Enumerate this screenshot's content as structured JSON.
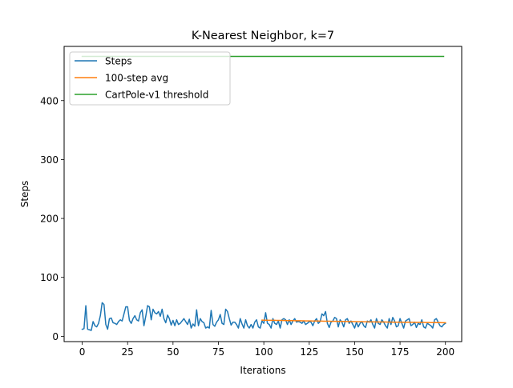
{
  "chart_data": {
    "type": "line",
    "title": "K-Nearest Neighbor, k=7",
    "xlabel": "Iterations",
    "ylabel": "Steps",
    "xlim": [
      -9.95,
      208.95
    ],
    "ylim": [
      -9.0,
      492.0
    ],
    "xticks": [
      0,
      25,
      50,
      75,
      100,
      125,
      150,
      175,
      200
    ],
    "yticks": [
      0,
      100,
      200,
      300,
      400
    ],
    "grid": false,
    "legend_position": "top-left",
    "series": [
      {
        "name": "Steps",
        "color": "#1f77b4",
        "x_start": 0,
        "values": [
          12,
          13,
          52,
          12,
          11,
          10,
          25,
          18,
          16,
          22,
          35,
          57,
          54,
          20,
          12,
          30,
          31,
          23,
          22,
          20,
          25,
          28,
          26,
          38,
          50,
          50,
          27,
          22,
          30,
          35,
          28,
          26,
          40,
          45,
          18,
          34,
          52,
          50,
          28,
          46,
          40,
          38,
          42,
          34,
          46,
          30,
          23,
          36,
          30,
          19,
          27,
          18,
          28,
          20,
          22,
          26,
          30,
          25,
          20,
          29,
          14,
          21,
          17,
          45,
          18,
          30,
          25,
          23,
          14,
          16,
          14,
          44,
          20,
          17,
          24,
          28,
          37,
          22,
          20,
          46,
          42,
          30,
          19,
          24,
          24,
          20,
          14,
          30,
          21,
          14,
          28,
          18,
          14,
          20,
          14,
          24,
          28,
          16,
          14,
          26,
          22,
          40,
          22,
          20,
          14,
          30,
          22,
          20,
          26,
          14,
          28,
          30,
          28,
          20,
          28,
          20,
          26,
          30,
          24,
          25,
          24,
          22,
          26,
          20,
          22,
          25,
          24,
          18,
          26,
          30,
          22,
          25,
          38,
          35,
          42,
          22,
          15,
          24,
          26,
          32,
          30,
          16,
          28,
          24,
          16,
          28,
          30,
          22,
          26,
          20,
          14,
          24,
          16,
          22,
          25,
          18,
          15,
          26,
          24,
          28,
          20,
          14,
          30,
          22,
          20,
          28,
          24,
          18,
          14,
          30,
          20,
          32,
          26,
          16,
          18,
          30,
          22,
          14,
          26,
          28,
          30,
          18,
          20,
          24,
          15,
          22,
          20,
          28,
          16,
          14,
          22,
          20,
          18,
          14,
          28,
          30,
          24,
          18,
          16,
          20,
          22
        ]
      },
      {
        "name": "100-step avg",
        "color": "#ff7f0e",
        "x_start": 99,
        "values": [
          27.5,
          27.4,
          27.3,
          27.3,
          27.2,
          27.2,
          27.1,
          27.1,
          27.0,
          27.0,
          26.9,
          26.9,
          26.8,
          26.8,
          26.7,
          26.7,
          26.6,
          26.6,
          26.5,
          26.5,
          26.4,
          26.4,
          26.3,
          26.3,
          26.2,
          26.2,
          26.1,
          26.1,
          26.0,
          26.0,
          25.9,
          25.9,
          25.8,
          25.8,
          25.7,
          25.7,
          25.6,
          25.6,
          25.5,
          25.5,
          25.4,
          25.4,
          25.3,
          25.3,
          25.2,
          25.2,
          25.1,
          25.1,
          25.0,
          25.0,
          24.9,
          24.9,
          24.8,
          24.8,
          24.7,
          24.7,
          24.6,
          24.6,
          24.5,
          24.5,
          24.4,
          24.4,
          24.4,
          24.3,
          24.3,
          24.3,
          24.2,
          24.2,
          24.2,
          24.1,
          24.1,
          24.1,
          24.0,
          24.0,
          24.0,
          23.9,
          23.9,
          23.9,
          23.8,
          23.8,
          23.8,
          23.7,
          23.7,
          23.7,
          23.6,
          23.6,
          23.6,
          23.5,
          23.5,
          23.5,
          23.4,
          23.4,
          23.4,
          23.3,
          23.3,
          23.3,
          23.2,
          23.2,
          23.2,
          23.1,
          23.1,
          23.1
        ]
      },
      {
        "name": "CartPole-v1 threshold",
        "color": "#2ca02c",
        "x": [
          0,
          199
        ],
        "values": [
          475,
          475
        ]
      }
    ]
  }
}
